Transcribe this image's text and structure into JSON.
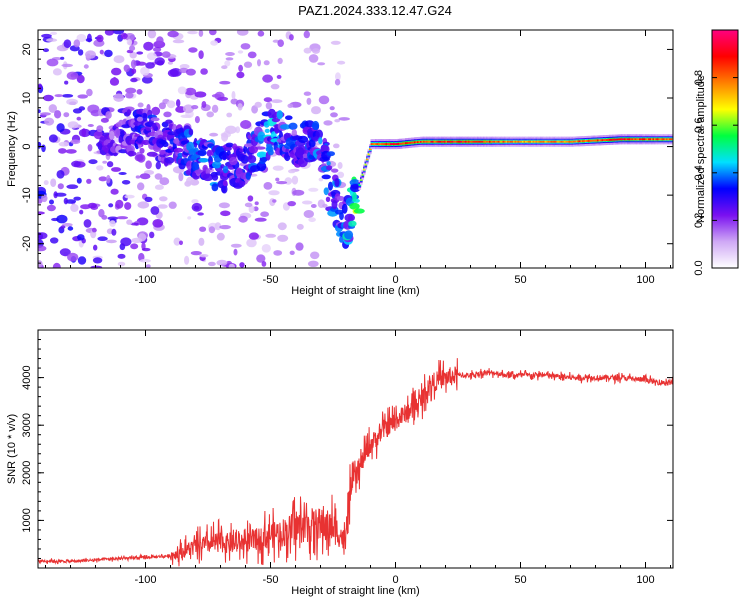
{
  "figure": {
    "title": "PAZ1.2024.333.12.47.G24"
  },
  "colors": {
    "snr_line": "#e83232",
    "axis": "#000000",
    "background": "#ffffff"
  },
  "chart_data": [
    {
      "type": "heatmap",
      "xlabel": "Height of straight line (km)",
      "ylabel": "Frequency (Hz)",
      "xlim": [
        -143,
        111
      ],
      "ylim": [
        -25,
        24
      ],
      "x_ticks": [
        -100,
        -50,
        0,
        50,
        100
      ],
      "y_ticks": [
        -20,
        -10,
        0,
        10,
        20
      ],
      "grid": false,
      "colorbar": {
        "label": "Normalized spectral amplitude",
        "range": [
          0,
          1
        ],
        "ticks": [
          0.0,
          0.2,
          0.4,
          0.6,
          0.8
        ],
        "tick_labels": [
          "0.0",
          "0.2",
          "0.4",
          "0.6",
          "0.8"
        ],
        "colormap": [
          "#ffffff",
          "#cfa8f5",
          "#7a10f0",
          "#0000ff",
          "#00e0ff",
          "#00ff40",
          "#ffff00",
          "#ff8000",
          "#ff0000",
          "#ff0080"
        ]
      },
      "ridge": [
        {
          "x": -110,
          "y": 3,
          "amp": 0.25
        },
        {
          "x": -100,
          "y": 3,
          "amp": 0.3
        },
        {
          "x": -90,
          "y": 1,
          "amp": 0.3
        },
        {
          "x": -80,
          "y": -2,
          "amp": 0.35
        },
        {
          "x": -70,
          "y": -5,
          "amp": 0.35
        },
        {
          "x": -60,
          "y": -3,
          "amp": 0.3
        },
        {
          "x": -50,
          "y": 3,
          "amp": 0.4
        },
        {
          "x": -40,
          "y": 1,
          "amp": 0.3
        },
        {
          "x": -30,
          "y": 0,
          "amp": 0.35
        },
        {
          "x": -20,
          "y": -17,
          "amp": 0.35
        },
        {
          "x": -10,
          "y": 0.5,
          "amp": 0.85
        },
        {
          "x": 0,
          "y": 0.5,
          "amp": 0.95
        },
        {
          "x": 10,
          "y": 1,
          "amp": 0.9
        },
        {
          "x": 30,
          "y": 1,
          "amp": 0.95
        },
        {
          "x": 50,
          "y": 1,
          "amp": 0.8
        },
        {
          "x": 70,
          "y": 1,
          "amp": 0.85
        },
        {
          "x": 90,
          "y": 1.5,
          "amp": 0.95
        },
        {
          "x": 110,
          "y": 1.5,
          "amp": 0.85
        }
      ]
    },
    {
      "type": "line",
      "xlabel": "Height of straight line (km)",
      "ylabel": "SNR (10 * v/v)",
      "xlim": [
        -143,
        111
      ],
      "ylim": [
        0,
        5000
      ],
      "x_ticks": [
        -100,
        -50,
        0,
        50,
        100
      ],
      "y_ticks": [
        1000,
        2000,
        3000,
        4000
      ],
      "grid": false,
      "series": [
        {
          "color": "#e83232",
          "x": [
            -143,
            -130,
            -120,
            -110,
            -100,
            -90,
            -85,
            -80,
            -75,
            -70,
            -65,
            -60,
            -55,
            -50,
            -45,
            -40,
            -35,
            -30,
            -25,
            -22,
            -20,
            -18,
            -15,
            -12,
            -10,
            -8,
            -5,
            -2,
            0,
            3,
            5,
            8,
            10,
            12,
            15,
            20,
            25,
            30,
            35,
            40,
            45,
            50,
            60,
            70,
            80,
            90,
            100,
            105,
            111
          ],
          "y": [
            150,
            140,
            170,
            200,
            220,
            260,
            350,
            450,
            500,
            550,
            500,
            550,
            600,
            700,
            750,
            850,
            900,
            900,
            850,
            700,
            500,
            1700,
            2000,
            2400,
            2600,
            2700,
            2900,
            3000,
            3100,
            3200,
            3300,
            3400,
            3500,
            3700,
            3900,
            4000,
            4050,
            4050,
            4100,
            4100,
            4050,
            4050,
            4050,
            4000,
            4000,
            4000,
            3950,
            3900,
            3900
          ]
        }
      ]
    }
  ]
}
